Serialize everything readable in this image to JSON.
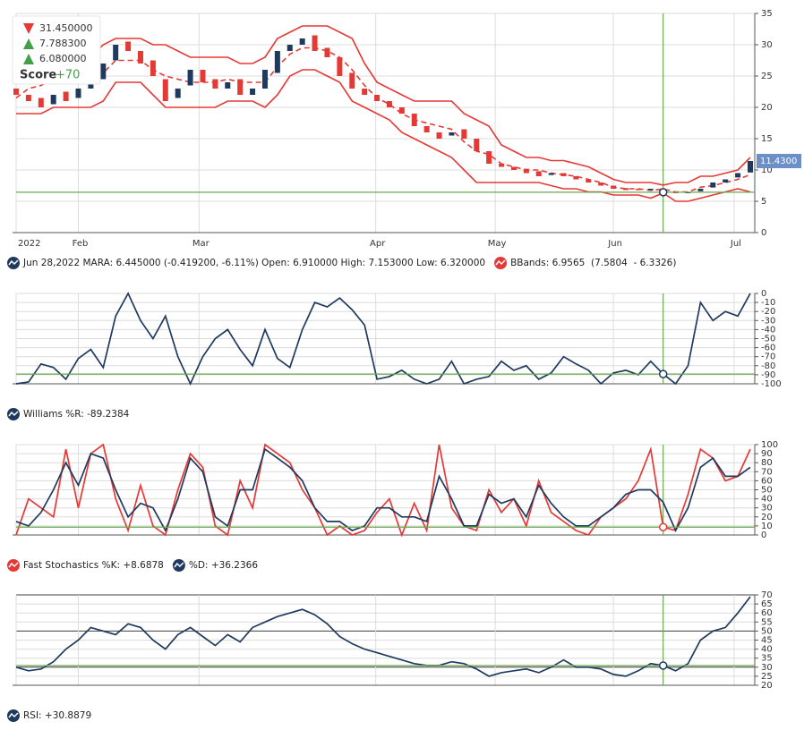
{
  "crosshair": 52,
  "chart_data": [
    {
      "type": "candlestick",
      "xticks": [
        {
          "value": 0,
          "label": "2022"
        },
        {
          "value": 5,
          "label": "Feb"
        },
        {
          "value": 14.7,
          "label": "Mar"
        },
        {
          "value": 28.9,
          "label": "Apr"
        },
        {
          "value": 38.5,
          "label": "May"
        },
        {
          "value": 48,
          "label": "Jun"
        },
        {
          "value": 57.7,
          "label": "Jul"
        }
      ],
      "ylim": [
        0,
        35
      ],
      "yticks": [
        0,
        5,
        10,
        15,
        20,
        25,
        30,
        35
      ],
      "up_color": "#1f3a5f",
      "down_color": "#e53935",
      "open": [
        23,
        22,
        21.5,
        20.5,
        22.5,
        21.5,
        23,
        24.5,
        27.5,
        30.5,
        29,
        27.5,
        24.5,
        21.5,
        23.5,
        26,
        24.5,
        23,
        24.5,
        22,
        23,
        25.5,
        29,
        30,
        31.5,
        29.5,
        28,
        25.5,
        23,
        22,
        21,
        20,
        19,
        17,
        16,
        15.5,
        16.5,
        15,
        13,
        11,
        10.5,
        10.2,
        9.8,
        9.2,
        9.5,
        9,
        8.5,
        8,
        7.5,
        7.1,
        7,
        6.8,
        6.91,
        6.5,
        6.3,
        6.6,
        7.2,
        8,
        8.8,
        9.6
      ],
      "close": [
        22,
        21,
        20,
        22,
        21,
        23,
        24,
        27,
        30,
        29,
        27,
        25,
        21,
        23,
        26,
        24,
        23,
        24,
        22,
        23,
        26,
        29,
        30,
        31,
        29,
        28,
        25,
        23,
        22,
        21,
        20,
        19,
        17,
        16,
        15,
        16,
        15,
        13,
        11,
        10.5,
        10,
        9.5,
        9,
        9.5,
        9,
        8.5,
        8,
        7.5,
        7,
        6.8,
        6.8,
        7,
        6.445,
        6.4,
        6.5,
        7,
        8,
        8.5,
        9.5,
        11.43
      ],
      "series": [
        {
          "color": "#e53935",
          "dash": false,
          "values": [
            24,
            27,
            28,
            29,
            29,
            28,
            28,
            30,
            31,
            31,
            31,
            30,
            30,
            29,
            28,
            28,
            28,
            28,
            27,
            27,
            28,
            31,
            32,
            33,
            33,
            33,
            32,
            31,
            27,
            24,
            23,
            22,
            21,
            21,
            21,
            21,
            19,
            18,
            17,
            14,
            13,
            12,
            12,
            11.5,
            11.5,
            11,
            10.5,
            9.5,
            8.5,
            8,
            8,
            8,
            7.5804,
            8,
            8,
            9,
            9,
            9.5,
            10,
            12
          ]
        },
        {
          "color": "#e53935",
          "dash": true,
          "values": [
            21.5,
            23,
            23.5,
            24.5,
            24.5,
            24,
            24,
            25.5,
            27.5,
            27.5,
            27.5,
            26,
            25,
            24.5,
            24,
            24,
            24,
            24.5,
            24,
            24,
            24,
            26.5,
            28.5,
            29.5,
            29.5,
            29,
            28,
            26,
            23.5,
            21.5,
            20.5,
            19,
            18,
            17.5,
            17,
            16.5,
            14.5,
            13,
            12.5,
            11,
            10.5,
            10,
            10,
            9.5,
            9.25,
            9,
            8.5,
            8,
            7.25,
            7,
            7,
            6.75,
            6.9565,
            6.5,
            6.5,
            7.25,
            7.5,
            8,
            8.5,
            9.25
          ]
        },
        {
          "color": "#e53935",
          "dash": false,
          "values": [
            19,
            19,
            19,
            20,
            20,
            20,
            20,
            21,
            24,
            24,
            24,
            22,
            20,
            20,
            20,
            20,
            20,
            21,
            21,
            21,
            20,
            22,
            25,
            26,
            26,
            25,
            24,
            21,
            20,
            19,
            18,
            16,
            15,
            14,
            13,
            12,
            10,
            8,
            8,
            8,
            8,
            8,
            8,
            7.5,
            7,
            7,
            6.5,
            6.5,
            6,
            6,
            6,
            5.5,
            6.3326,
            5,
            5,
            5.5,
            6,
            6.5,
            7,
            6.5
          ]
        }
      ],
      "last_price_label": "11.4300",
      "score_box": {
        "items": [
          {
            "text": "31.450000",
            "color": "#e53935"
          },
          {
            "text": "7.788300",
            "color": "#43a047"
          },
          {
            "text": "6.080000",
            "color": "#43a047"
          }
        ],
        "label": "Score",
        "value": "+70"
      },
      "legend": [
        {
          "text": "Jun 28,2022 MARA: 6.445000 (-0.419200, -6.11%) Open: 6.910000 High: 7.153000 Low: 6.320000",
          "color": "#1f3a5f"
        },
        {
          "text": "BBands: 6.9565  (7.5804  - 6.3326)",
          "color": "#e53935"
        }
      ]
    },
    {
      "type": "line",
      "ylim": [
        -100,
        0
      ],
      "yticks": [
        0,
        -10,
        -20,
        -30,
        -40,
        -50,
        -60,
        -70,
        -80,
        -90,
        -100
      ],
      "series": [
        {
          "color": "#1f3a5f",
          "values": [
            -100,
            -98,
            -78,
            -82,
            -95,
            -72,
            -62,
            -82,
            -25,
            0,
            -30,
            -50,
            -25,
            -70,
            -100,
            -70,
            -50,
            -40,
            -62,
            -80,
            -40,
            -72,
            -82,
            -40,
            -10,
            -15,
            -5,
            -18,
            -35,
            -95,
            -92,
            -85,
            -95,
            -100,
            -95,
            -75,
            -100,
            -95,
            -92,
            -75,
            -85,
            -80,
            -95,
            -88,
            -70,
            -78,
            -85,
            -100,
            -88,
            -85,
            -90,
            -75,
            -89.2384,
            -100,
            -80,
            -10,
            -30,
            -20,
            -25,
            0
          ]
        }
      ],
      "legend": [
        {
          "text": "Williams %R: -89.2384",
          "color": "#1f3a5f"
        }
      ]
    },
    {
      "type": "line",
      "ylim": [
        0,
        100
      ],
      "yticks": [
        0,
        10,
        20,
        30,
        40,
        50,
        60,
        70,
        80,
        90,
        100
      ],
      "series": [
        {
          "color": "#e53935",
          "values": [
            0,
            40,
            30,
            20,
            95,
            30,
            90,
            100,
            40,
            5,
            55,
            10,
            0,
            50,
            90,
            75,
            10,
            0,
            60,
            30,
            100,
            90,
            80,
            50,
            30,
            0,
            10,
            0,
            5,
            25,
            40,
            0,
            35,
            5,
            100,
            30,
            10,
            5,
            50,
            25,
            40,
            10,
            60,
            25,
            15,
            5,
            0,
            20,
            30,
            40,
            60,
            95,
            8.6878,
            5,
            45,
            95,
            85,
            60,
            65,
            95
          ]
        },
        {
          "color": "#1f3a5f",
          "values": [
            15,
            10,
            25,
            50,
            80,
            55,
            90,
            85,
            50,
            20,
            35,
            30,
            5,
            40,
            85,
            70,
            20,
            10,
            50,
            50,
            95,
            85,
            75,
            60,
            30,
            15,
            15,
            5,
            10,
            30,
            30,
            20,
            20,
            15,
            65,
            40,
            10,
            10,
            45,
            35,
            40,
            20,
            55,
            35,
            20,
            10,
            10,
            20,
            30,
            45,
            50,
            50,
            36.2366,
            5,
            30,
            75,
            85,
            65,
            65,
            75
          ]
        }
      ],
      "legend": [
        {
          "text": "Fast Stochastics %K: +8.6878",
          "color": "#e53935"
        },
        {
          "text": "%D: +36.2366",
          "color": "#1f3a5f"
        }
      ]
    },
    {
      "type": "line",
      "ylim": [
        20,
        70
      ],
      "yticks": [
        20,
        25,
        30,
        35,
        40,
        45,
        50,
        55,
        60,
        65,
        70
      ],
      "reference_lines": [
        70,
        50,
        30
      ],
      "series": [
        {
          "color": "#1f3a5f",
          "values": [
            30,
            28,
            29,
            33,
            40,
            45,
            52,
            50,
            48,
            54,
            52,
            45,
            40,
            48,
            52,
            47,
            42,
            48,
            44,
            52,
            55,
            58,
            60,
            62,
            59,
            54,
            47,
            43,
            40,
            38,
            36,
            34,
            32,
            31,
            31,
            33,
            32,
            29,
            25,
            27,
            28,
            29,
            27,
            30,
            34,
            30,
            30,
            29,
            26,
            25,
            28,
            32,
            30.8879,
            28,
            32,
            45,
            50,
            52,
            60,
            69
          ]
        }
      ],
      "legend": [
        {
          "text": "RSI: +30.8879",
          "color": "#1f3a5f"
        }
      ]
    }
  ]
}
